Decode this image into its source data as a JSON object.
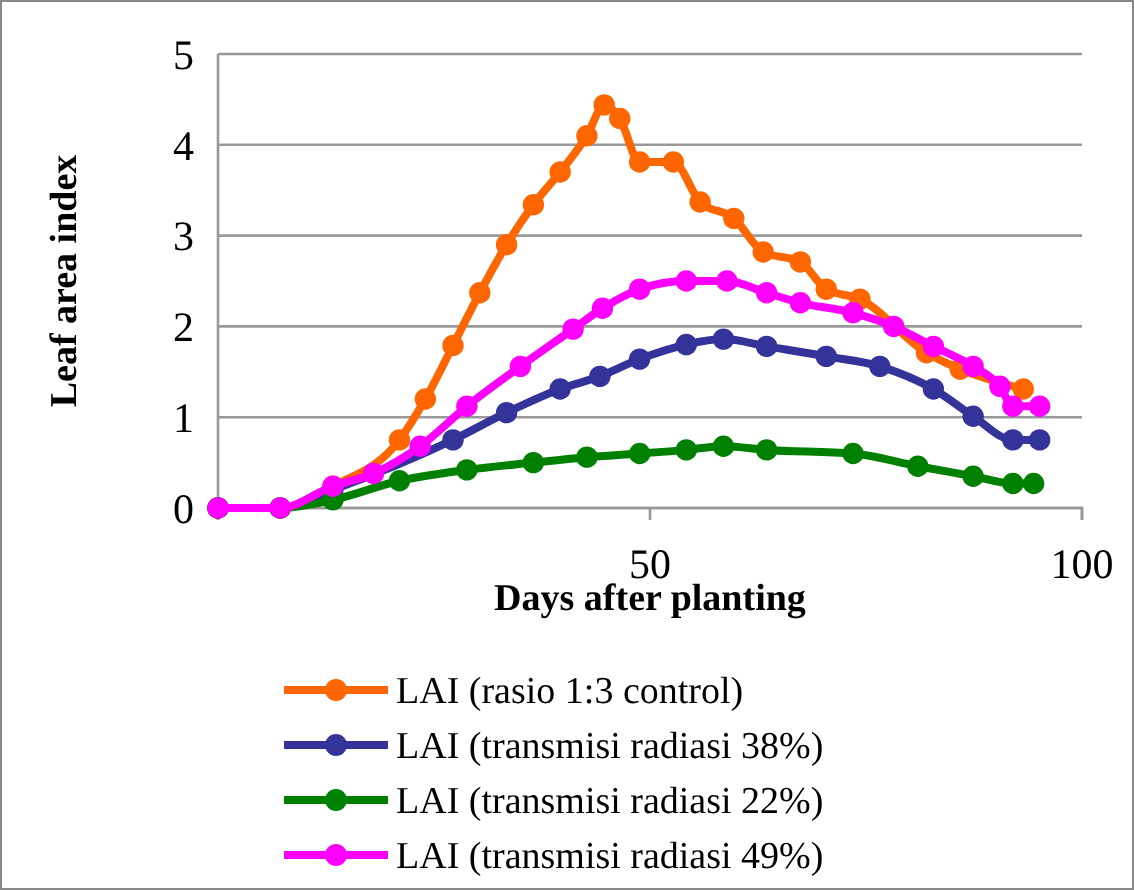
{
  "chart_data": {
    "type": "line",
    "xlabel": "Days after planting",
    "ylabel": "Leaf area index",
    "xlim": [
      0,
      100
    ],
    "xticks": [
      {
        "value": 0,
        "label": null
      },
      50,
      100
    ],
    "ylim": [
      0,
      5
    ],
    "yticks": [
      0,
      1,
      2,
      3,
      4,
      5
    ],
    "grid": "y",
    "legend": "bottom",
    "marker": "circle",
    "line_style": "solid",
    "series": [
      {
        "name": "LAI (rasio 1:3 control)",
        "color": "#ff6600",
        "x": [
          0,
          7.2,
          13.3,
          21,
          24,
          27.2,
          30.3,
          33.4,
          36.5,
          39.6,
          42.7,
          44.7,
          46.5,
          48.8,
          52.7,
          55.8,
          59.7,
          63.1,
          67.4,
          70.4,
          74.3,
          82,
          85.9,
          93.2
        ],
        "values": [
          0,
          0,
          0.24,
          0.75,
          1.2,
          1.79,
          2.37,
          2.9,
          3.34,
          3.7,
          4.1,
          4.44,
          4.29,
          3.81,
          3.81,
          3.37,
          3.19,
          2.82,
          2.71,
          2.41,
          2.3,
          1.71,
          1.53,
          1.31
        ]
      },
      {
        "name": "LAI (transmisi radiasi 38%)",
        "color": "#333399",
        "x": [
          0,
          7.2,
          13.3,
          27.2,
          33.4,
          39.6,
          44.2,
          48.8,
          54.2,
          58.5,
          63.5,
          70.4,
          76.6,
          82.8,
          87.4,
          92,
          95.1
        ],
        "values": [
          0,
          0,
          0.2,
          0.75,
          1.05,
          1.31,
          1.45,
          1.64,
          1.8,
          1.86,
          1.78,
          1.67,
          1.56,
          1.31,
          1.01,
          0.75,
          0.75
        ]
      },
      {
        "name": "LAI (transmisi radiasi 22%)",
        "color": "#008000",
        "x": [
          0,
          7.2,
          13.3,
          21,
          28.8,
          36.5,
          42.7,
          48.8,
          54.2,
          58.5,
          63.5,
          73.5,
          81,
          87.4,
          92,
          94.4
        ],
        "values": [
          0,
          0,
          0.09,
          0.3,
          0.42,
          0.5,
          0.56,
          0.6,
          0.64,
          0.68,
          0.64,
          0.6,
          0.46,
          0.35,
          0.27,
          0.27
        ]
      },
      {
        "name": "LAI (transmisi radiasi 49%)",
        "color": "#ff00ff",
        "x": [
          0,
          7.2,
          13.3,
          18,
          23.4,
          28.8,
          35,
          41.1,
          44.5,
          48.8,
          54.2,
          58.9,
          63.5,
          67.4,
          73.5,
          78.2,
          82.8,
          87.4,
          90.5,
          92,
          95.1
        ],
        "values": [
          0,
          0,
          0.24,
          0.38,
          0.68,
          1.12,
          1.56,
          1.97,
          2.2,
          2.41,
          2.5,
          2.5,
          2.37,
          2.26,
          2.15,
          2,
          1.78,
          1.56,
          1.34,
          1.12,
          1.12
        ]
      }
    ]
  }
}
